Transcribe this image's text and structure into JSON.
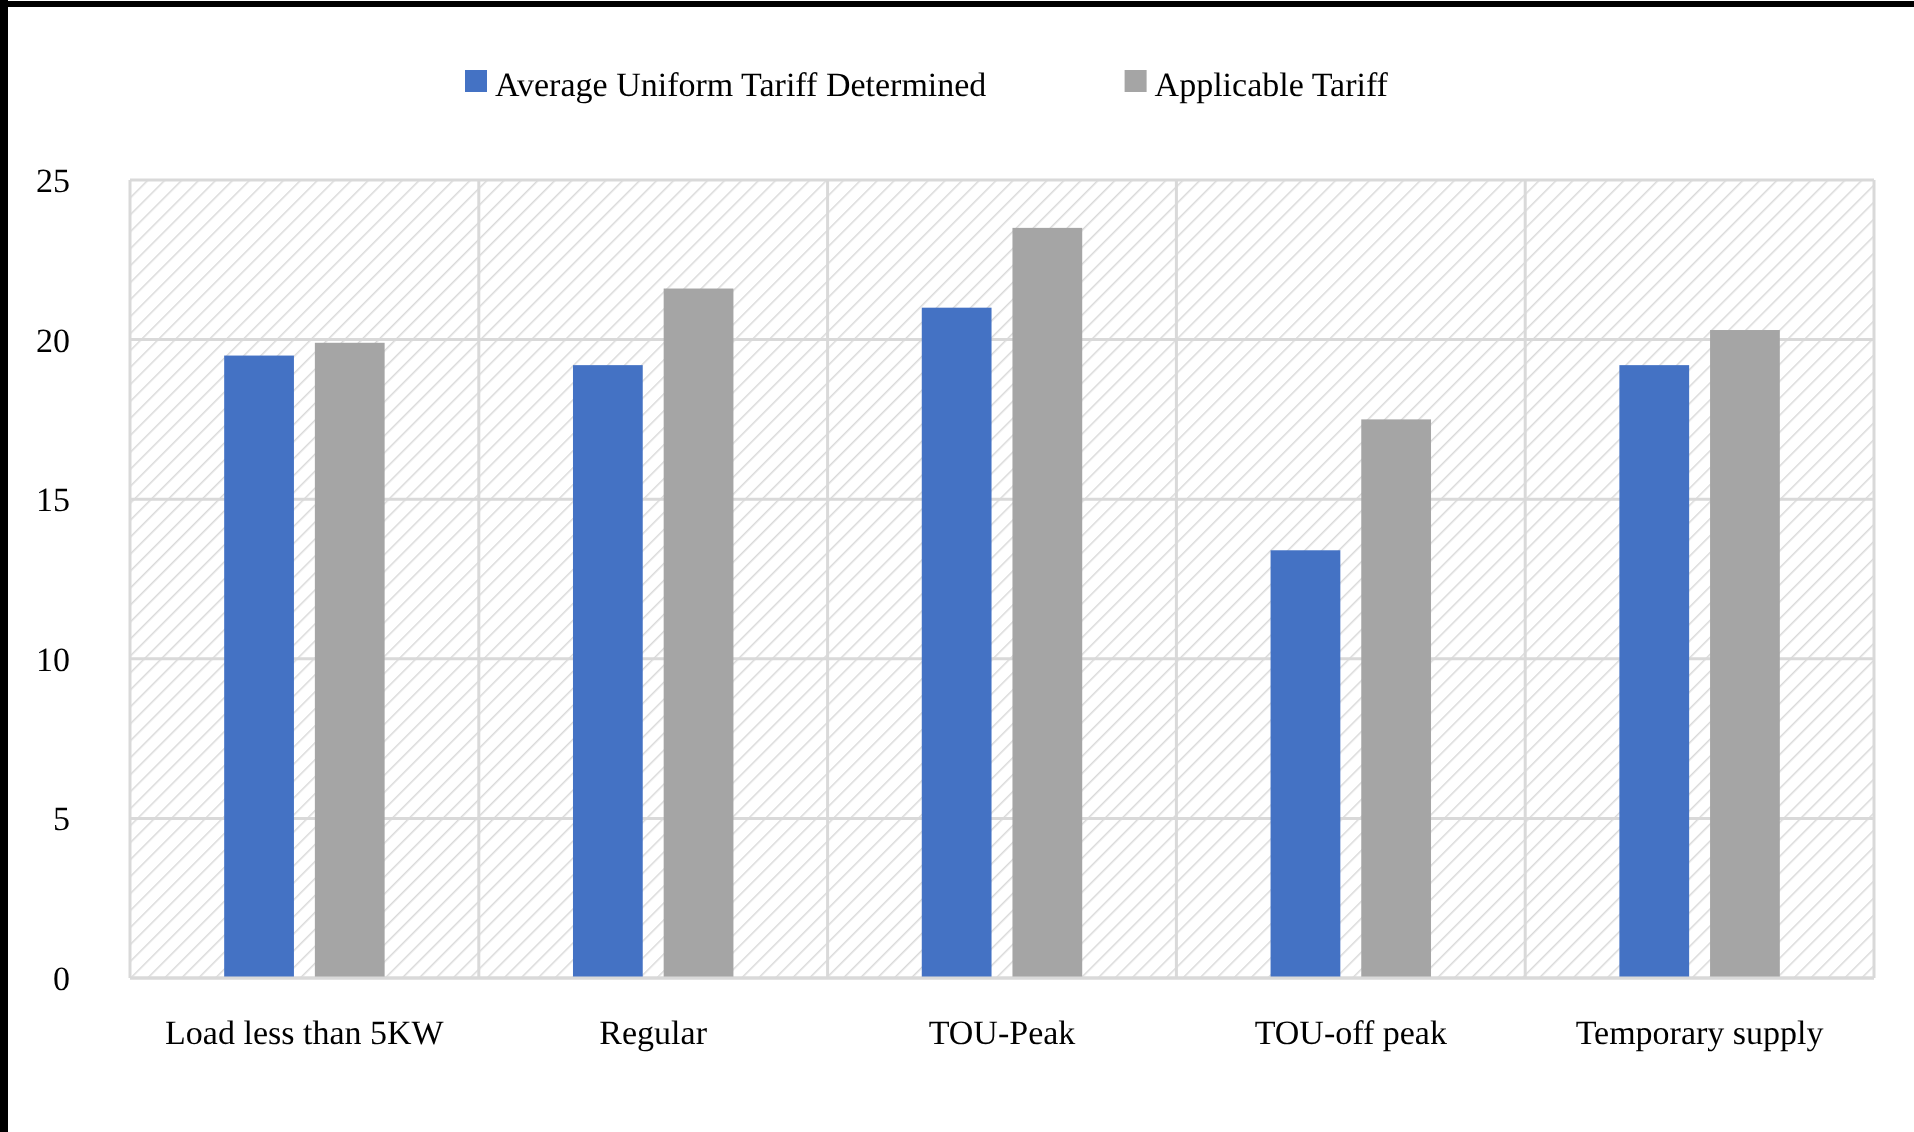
{
  "chart_data": {
    "type": "bar",
    "categories": [
      "Load less than 5KW",
      "Regular",
      "TOU-Peak",
      "TOU-off peak",
      "Temporary supply"
    ],
    "series": [
      {
        "name": "Average Uniform Tariff Determined",
        "color": "#4472c4",
        "values": [
          19.5,
          19.2,
          21.0,
          13.4,
          19.2
        ]
      },
      {
        "name": "Applicable Tariff",
        "color": "#a5a5a5",
        "values": [
          19.9,
          21.6,
          23.5,
          17.5,
          20.3
        ]
      }
    ],
    "ylim": [
      0,
      25
    ],
    "yticks": [
      0,
      5,
      10,
      15,
      20,
      25
    ],
    "grid": true,
    "legend": "top"
  }
}
